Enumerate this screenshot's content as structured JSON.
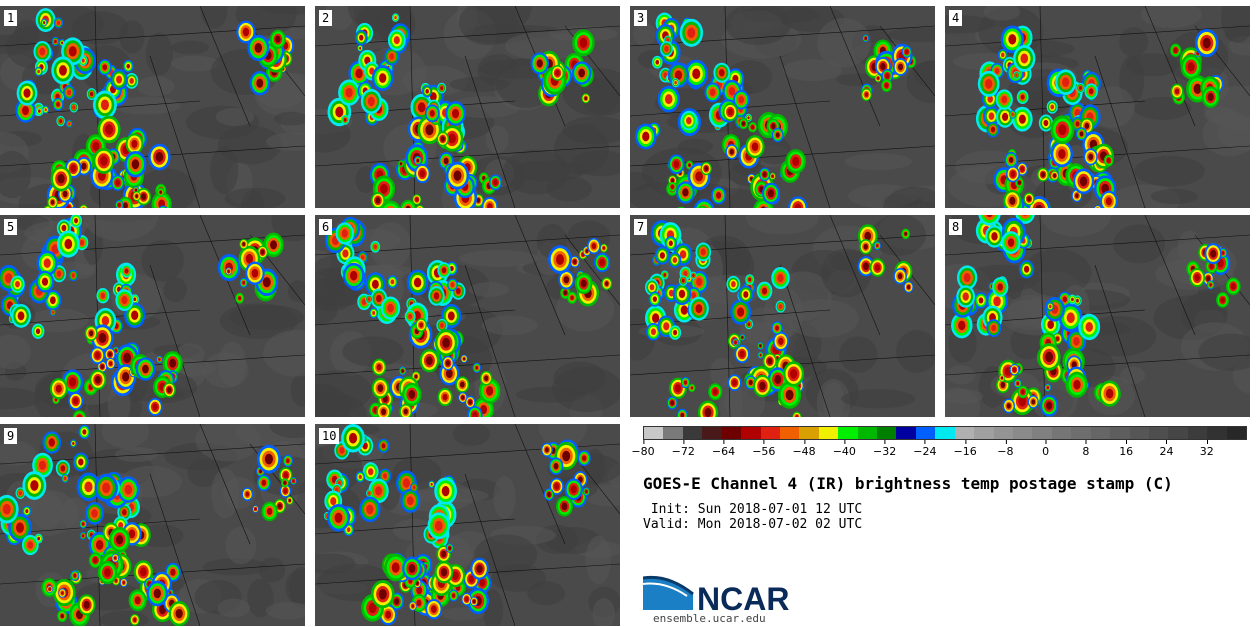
{
  "panels": [
    {
      "label": "1"
    },
    {
      "label": "2"
    },
    {
      "label": "3"
    },
    {
      "label": "4"
    },
    {
      "label": "5"
    },
    {
      "label": "6"
    },
    {
      "label": "7"
    },
    {
      "label": "8"
    },
    {
      "label": "9"
    },
    {
      "label": "10"
    }
  ],
  "colorbar": {
    "colors": [
      "#c8c8c8",
      "#7a7a7a",
      "#3a3a3a",
      "#4a1a1a",
      "#6e0000",
      "#b00000",
      "#e02010",
      "#f06000",
      "#d8a000",
      "#f0f000",
      "#00f000",
      "#00b800",
      "#008000",
      "#0000a0",
      "#0060ff",
      "#00e8f0",
      "#b0b0b0",
      "#a0a0a0",
      "#949494",
      "#8a8a8a",
      "#808080",
      "#767676",
      "#6e6e6e",
      "#666666",
      "#5e5e5e",
      "#565656",
      "#4e4e4e",
      "#464646",
      "#3c3c3c",
      "#323232",
      "#282828"
    ],
    "tick_labels": [
      "−80",
      "−72",
      "−64",
      "−56",
      "−48",
      "−40",
      "−32",
      "−24",
      "−16",
      "−8",
      "0",
      "8",
      "16",
      "24",
      "32"
    ]
  },
  "title": "GOES-E Channel 4 (IR) brightness temp postage stamp (C)",
  "init_line": " Init: Sun 2018-07-01 12 UTC",
  "valid_line": "Valid: Mon 2018-07-02 02 UTC",
  "logo_text": "NCAR",
  "website": "ensemble.ucar.edu"
}
